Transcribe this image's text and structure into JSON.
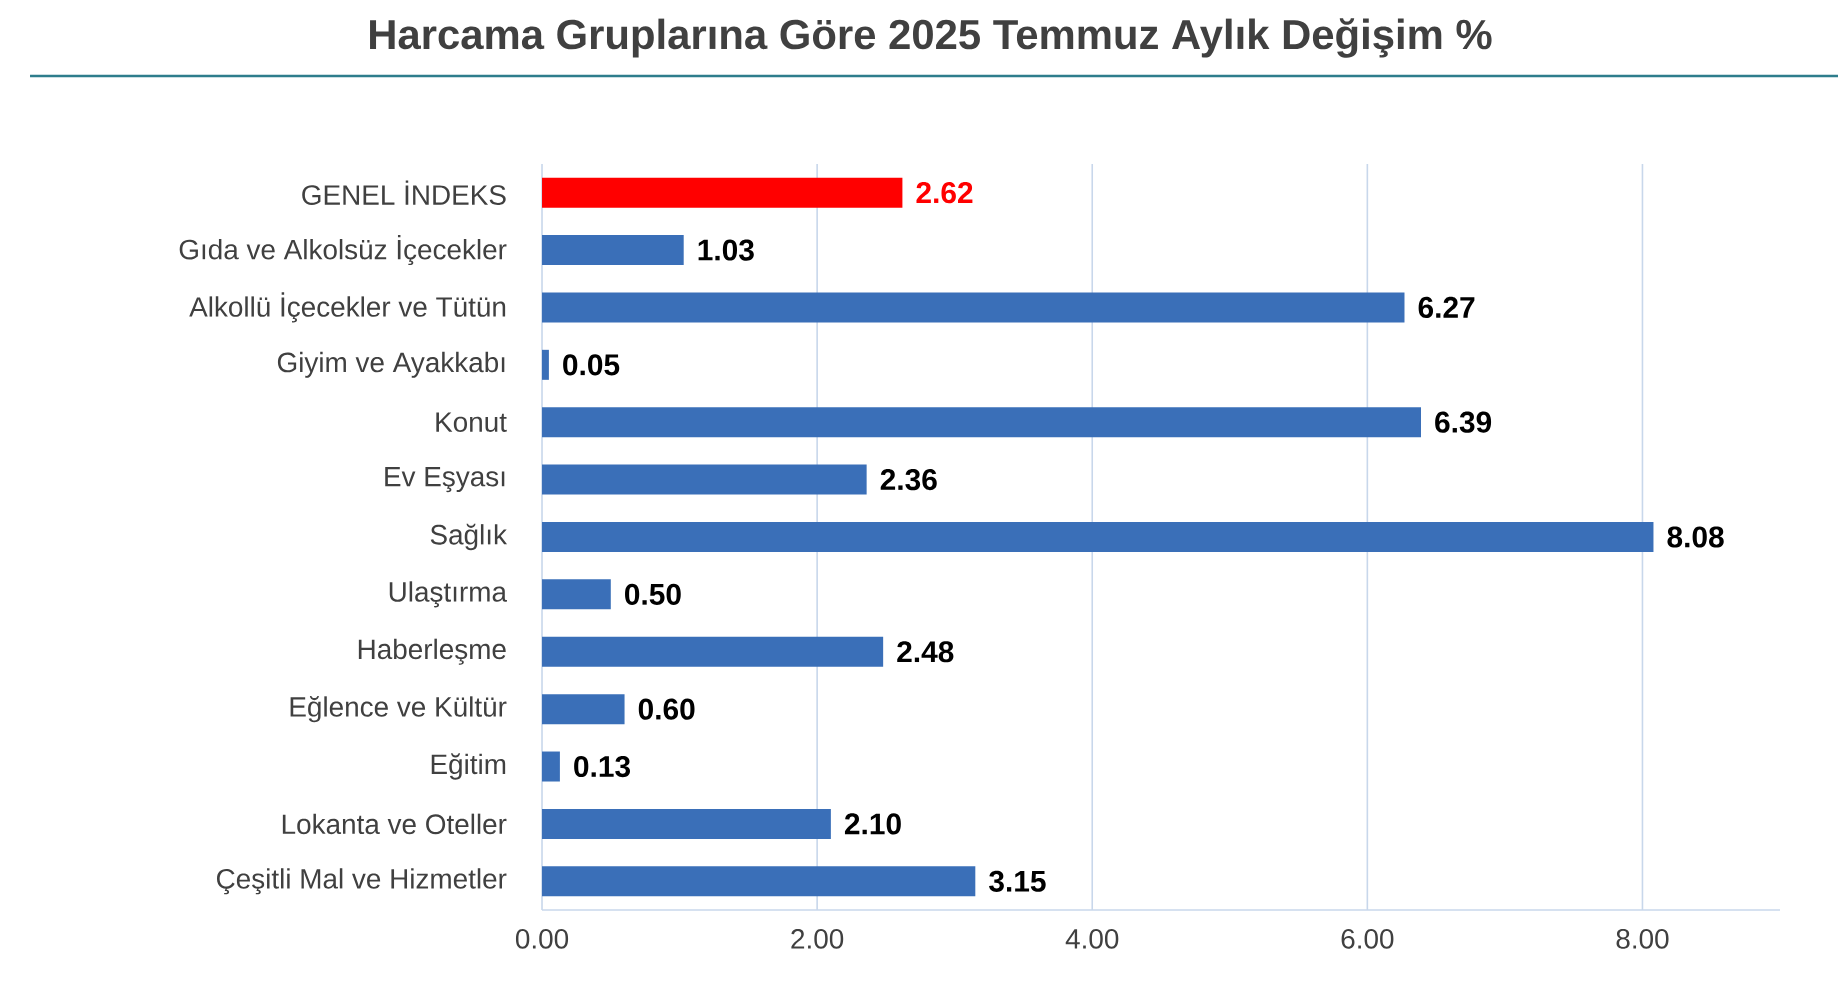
{
  "chart_data": {
    "type": "bar",
    "orientation": "horizontal",
    "title": "Harcama Gruplarına Göre 2025 Temmuz Aylık Değişim %",
    "categories": [
      "GENEL İNDEKS",
      "Gıda ve Alkolsüz İçecekler",
      "Alkollü İçecekler ve Tütün",
      "Giyim ve Ayakkabı",
      "Konut",
      "Ev Eşyası",
      "Sağlık",
      "Ulaştırma",
      "Haberleşme",
      "Eğlence ve Kültür",
      "Eğitim",
      "Lokanta ve Oteller",
      "Çeşitli Mal ve Hizmetler"
    ],
    "values": [
      2.62,
      1.03,
      6.27,
      0.05,
      6.39,
      2.36,
      8.08,
      0.5,
      2.48,
      0.6,
      0.13,
      2.1,
      3.15
    ],
    "value_labels": [
      "2.62",
      "1.03",
      "6.27",
      "0.05",
      "6.39",
      "2.36",
      "8.08",
      "0.50",
      "2.48",
      "0.60",
      "0.13",
      "2.10",
      "3.15"
    ],
    "colors": [
      "#ff0000",
      "#3a6fb8",
      "#3a6fb8",
      "#3a6fb8",
      "#3a6fb8",
      "#3a6fb8",
      "#3a6fb8",
      "#3a6fb8",
      "#3a6fb8",
      "#3a6fb8",
      "#3a6fb8",
      "#3a6fb8",
      "#3a6fb8"
    ],
    "xlim": [
      0,
      9
    ],
    "xticks": [
      {
        "value": 0,
        "label": "0.00"
      },
      {
        "value": 2,
        "label": "2.00"
      },
      {
        "value": 4,
        "label": "4.00"
      },
      {
        "value": 6,
        "label": "6.00"
      },
      {
        "value": 8,
        "label": "8.00"
      }
    ],
    "grid": "x"
  }
}
